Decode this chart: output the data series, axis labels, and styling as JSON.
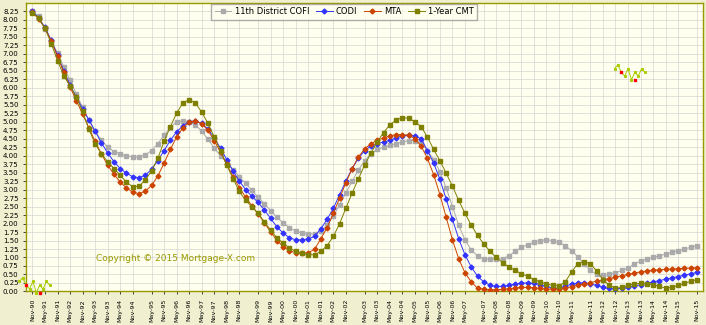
{
  "background_outer": "#f0f0d0",
  "background_inner": "#fffff0",
  "grid_color": "#cccccc",
  "copyright_text": "Copyright © 2015 Mortgage-X.com",
  "copyright_color": "#999900",
  "ylim": [
    0.0,
    8.5
  ],
  "yticks": [
    0.0,
    0.25,
    0.5,
    0.75,
    1.0,
    1.25,
    1.5,
    1.75,
    2.0,
    2.25,
    2.5,
    2.75,
    3.0,
    3.25,
    3.5,
    3.75,
    4.0,
    4.25,
    4.5,
    4.75,
    5.0,
    5.25,
    5.5,
    5.75,
    6.0,
    6.25,
    6.5,
    6.75,
    7.0,
    7.25,
    7.5,
    7.75,
    8.0,
    8.25
  ],
  "xtick_labels": [
    "Nov-90",
    "May-91",
    "Nov-91",
    "May-92",
    "Nov-92",
    "May-93",
    "Nov-93",
    "May-94",
    "Nov-94",
    "May-95",
    "Nov-95",
    "May-96",
    "Nov-96",
    "May-97",
    "Nov-97",
    "May-98",
    "Nov-98",
    "May-99",
    "Nov-99",
    "May-00",
    "Nov-00",
    "May-01",
    "Nov-01",
    "May-02",
    "Nov-02",
    "May-03",
    "Nov-03",
    "May-04",
    "Nov-04",
    "May-05",
    "Nov-05",
    "May-06",
    "Nov-06",
    "May-07",
    "Nov-07",
    "May-08",
    "Nov-08",
    "May-09",
    "Nov-09",
    "May-10",
    "Nov-10",
    "May-11",
    "Nov-11",
    "May-12",
    "Nov-12",
    "May-13",
    "Nov-13",
    "May-14",
    "Nov-14",
    "May-15",
    "Nov-15"
  ],
  "series_CMT_label": "1-Year CMT",
  "series_CMT_color": "#808000",
  "series_CMT_marker": "s",
  "series_CMT_markersize": 3.5,
  "series_COFI_label": "11th District COFI",
  "series_COFI_color": "#aaaaaa",
  "series_COFI_marker": "s",
  "series_COFI_markersize": 3.5,
  "series_CODI_label": "CODI",
  "series_CODI_color": "#3333ff",
  "series_CODI_marker": "D",
  "series_CODI_markersize": 2.5,
  "series_MTA_label": "MTA",
  "series_MTA_color": "#cc4400",
  "series_MTA_marker": "D",
  "series_MTA_markersize": 2.5,
  "cmt_data": [
    8.21,
    8.05,
    7.75,
    7.3,
    6.8,
    6.35,
    6.05,
    5.72,
    5.3,
    4.78,
    4.35,
    4.05,
    3.82,
    3.62,
    3.42,
    3.22,
    3.08,
    3.1,
    3.28,
    3.55,
    3.92,
    4.42,
    4.85,
    5.25,
    5.55,
    5.65,
    5.55,
    5.28,
    4.95,
    4.55,
    4.15,
    3.72,
    3.32,
    2.95,
    2.68,
    2.5,
    2.3,
    2.05,
    1.8,
    1.58,
    1.42,
    1.28,
    1.18,
    1.12,
    1.08,
    1.08,
    1.18,
    1.35,
    1.62,
    2.0,
    2.45,
    2.9,
    3.32,
    3.72,
    4.08,
    4.4,
    4.68,
    4.9,
    5.05,
    5.12,
    5.1,
    5.0,
    4.85,
    4.55,
    4.18,
    3.85,
    3.48,
    3.1,
    2.68,
    2.3,
    1.95,
    1.65,
    1.4,
    1.18,
    1.0,
    0.85,
    0.72,
    0.62,
    0.52,
    0.45,
    0.35,
    0.28,
    0.22,
    0.18,
    0.17,
    0.28,
    0.58,
    0.82,
    0.88,
    0.82,
    0.6,
    0.35,
    0.18,
    0.1,
    0.12,
    0.18,
    0.22,
    0.24,
    0.23,
    0.2,
    0.15,
    0.1,
    0.12,
    0.18,
    0.24,
    0.3,
    0.35
  ],
  "cofi_data": [
    8.25,
    8.1,
    7.72,
    7.38,
    7.02,
    6.62,
    6.22,
    5.82,
    5.42,
    5.05,
    4.72,
    4.45,
    4.25,
    4.12,
    4.05,
    4.0,
    3.96,
    3.96,
    4.02,
    4.15,
    4.35,
    4.6,
    4.82,
    5.0,
    5.02,
    5.0,
    4.9,
    4.72,
    4.48,
    4.22,
    4.0,
    3.78,
    3.58,
    3.38,
    3.18,
    2.98,
    2.78,
    2.58,
    2.38,
    2.18,
    2.02,
    1.88,
    1.78,
    1.72,
    1.68,
    1.7,
    1.78,
    1.95,
    2.22,
    2.55,
    2.9,
    3.25,
    3.58,
    3.85,
    4.05,
    4.18,
    4.25,
    4.3,
    4.35,
    4.4,
    4.44,
    4.44,
    4.38,
    4.15,
    3.88,
    3.52,
    3.05,
    2.5,
    1.95,
    1.52,
    1.22,
    1.05,
    0.96,
    0.95,
    0.95,
    0.96,
    1.05,
    1.18,
    1.3,
    1.38,
    1.45,
    1.5,
    1.52,
    1.5,
    1.45,
    1.35,
    1.2,
    1.02,
    0.82,
    0.62,
    0.5,
    0.48,
    0.5,
    0.55,
    0.62,
    0.7,
    0.8,
    0.9,
    0.95,
    1.0,
    1.05,
    1.1,
    1.15,
    1.2,
    1.25,
    1.3,
    1.35
  ],
  "codi_data": [
    8.25,
    8.05,
    7.78,
    7.4,
    6.95,
    6.5,
    6.08,
    5.72,
    5.38,
    5.05,
    4.72,
    4.38,
    4.08,
    3.82,
    3.62,
    3.48,
    3.38,
    3.35,
    3.42,
    3.6,
    3.85,
    4.15,
    4.45,
    4.7,
    4.88,
    5.0,
    5.02,
    4.95,
    4.78,
    4.52,
    4.22,
    3.88,
    3.55,
    3.25,
    3.0,
    2.8,
    2.62,
    2.4,
    2.15,
    1.9,
    1.72,
    1.58,
    1.52,
    1.52,
    1.55,
    1.62,
    1.85,
    2.12,
    2.45,
    2.85,
    3.25,
    3.62,
    3.92,
    4.15,
    4.28,
    4.35,
    4.4,
    4.45,
    4.52,
    4.58,
    4.6,
    4.58,
    4.5,
    4.15,
    3.78,
    3.3,
    2.72,
    2.12,
    1.55,
    1.08,
    0.72,
    0.45,
    0.28,
    0.18,
    0.15,
    0.15,
    0.18,
    0.22,
    0.25,
    0.25,
    0.24,
    0.2,
    0.15,
    0.1,
    0.09,
    0.15,
    0.22,
    0.25,
    0.25,
    0.22,
    0.18,
    0.12,
    0.09,
    0.08,
    0.09,
    0.12,
    0.16,
    0.2,
    0.24,
    0.28,
    0.32,
    0.36,
    0.4,
    0.44,
    0.48,
    0.52,
    0.56
  ],
  "mta_data": [
    8.22,
    8.02,
    7.75,
    7.38,
    6.92,
    6.45,
    6.02,
    5.62,
    5.22,
    4.82,
    4.42,
    4.05,
    3.72,
    3.45,
    3.22,
    3.05,
    2.92,
    2.88,
    2.95,
    3.12,
    3.4,
    3.78,
    4.18,
    4.55,
    4.82,
    4.98,
    5.02,
    4.94,
    4.74,
    4.44,
    4.1,
    3.74,
    3.38,
    3.06,
    2.78,
    2.52,
    2.28,
    2.02,
    1.75,
    1.5,
    1.32,
    1.2,
    1.14,
    1.12,
    1.14,
    1.24,
    1.55,
    1.88,
    2.3,
    2.75,
    3.2,
    3.62,
    3.96,
    4.2,
    4.35,
    4.45,
    4.52,
    4.58,
    4.62,
    4.62,
    4.6,
    4.5,
    4.28,
    3.92,
    3.44,
    2.85,
    2.18,
    1.52,
    0.96,
    0.55,
    0.28,
    0.1,
    0.06,
    0.05,
    0.05,
    0.06,
    0.08,
    0.1,
    0.12,
    0.12,
    0.11,
    0.09,
    0.07,
    0.07,
    0.08,
    0.1,
    0.14,
    0.18,
    0.22,
    0.26,
    0.3,
    0.34,
    0.38,
    0.42,
    0.46,
    0.5,
    0.54,
    0.58,
    0.6,
    0.62,
    0.64,
    0.65,
    0.66,
    0.67,
    0.68,
    0.69,
    0.7
  ]
}
